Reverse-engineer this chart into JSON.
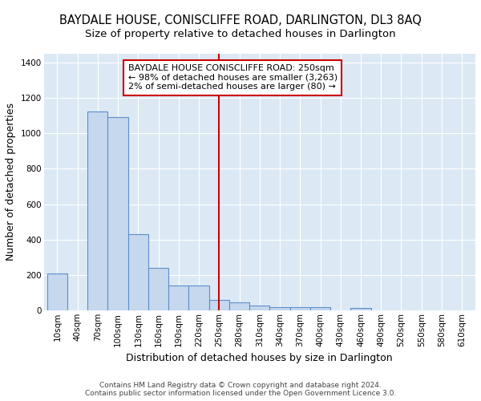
{
  "title": "BAYDALE HOUSE, CONISCLIFFE ROAD, DARLINGTON, DL3 8AQ",
  "subtitle": "Size of property relative to detached houses in Darlington",
  "xlabel": "Distribution of detached houses by size in Darlington",
  "ylabel": "Number of detached properties",
  "bar_color": "#c5d8ee",
  "bar_edge_color": "#5b8fc9",
  "background_color": "#dce9f5",
  "fig_background_color": "#ffffff",
  "grid_color": "#ffffff",
  "vline_x": 250,
  "vline_color": "#cc0000",
  "annotation_text": "BAYDALE HOUSE CONISCLIFFE ROAD: 250sqm\n← 98% of detached houses are smaller (3,263)\n2% of semi-detached houses are larger (80) →",
  "annotation_box_color": "#ffffff",
  "annotation_box_edge_color": "#cc0000",
  "categories": [
    10,
    40,
    70,
    100,
    130,
    160,
    190,
    220,
    250,
    280,
    310,
    340,
    370,
    400,
    430,
    460,
    490,
    520,
    550,
    580,
    610
  ],
  "values": [
    210,
    0,
    1125,
    1090,
    430,
    240,
    140,
    140,
    60,
    45,
    25,
    18,
    18,
    18,
    0,
    12,
    0,
    0,
    0,
    0,
    0
  ],
  "ylim": [
    0,
    1450
  ],
  "xlim": [
    -10,
    630
  ],
  "bin_width": 30,
  "footer_text1": "Contains HM Land Registry data © Crown copyright and database right 2024.",
  "footer_text2": "Contains public sector information licensed under the Open Government Licence 3.0.",
  "title_fontsize": 10.5,
  "subtitle_fontsize": 9.5,
  "tick_fontsize": 7.5,
  "label_fontsize": 9,
  "footer_fontsize": 6.5
}
